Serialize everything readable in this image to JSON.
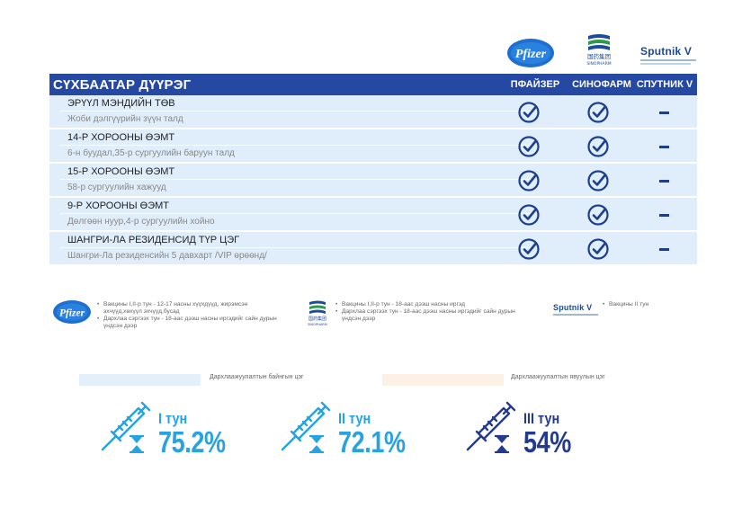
{
  "logos": {
    "pfizer": "Pfizer",
    "sinopharm_cn": "国药集团",
    "sinopharm_en": "SINOPHARM",
    "sputnik": "Sputnik V"
  },
  "table": {
    "title": "СҮХБААТАР ДҮҮРЭГ",
    "columns": [
      "ПФАЙЗЕР",
      "СИНОФАРМ",
      "СПУТНИК V"
    ],
    "rows": [
      {
        "name": "ЭРҮҮЛ МЭНДИЙН ТӨВ",
        "address": "Жоби дэлгүүрийн зүүн талд",
        "pfizer": true,
        "sinopharm": true,
        "sputnik": false
      },
      {
        "name": "14-Р ХОРООНЫ ӨЭМТ",
        "address": "6-н буудал,35-р сургуулийн баруун талд",
        "pfizer": true,
        "sinopharm": true,
        "sputnik": false
      },
      {
        "name": "15-Р ХОРООНЫ ӨЭМТ",
        "address": "58-р сургуулийн хажууд",
        "pfizer": true,
        "sinopharm": true,
        "sputnik": false
      },
      {
        "name": "9-Р ХОРООНЫ ӨЭМТ",
        "address": "Дөлгөөн нуур,4-р сургуулийн хойно",
        "pfizer": true,
        "sinopharm": true,
        "sputnik": false
      },
      {
        "name": "ШАНГРИ-ЛА РЕЗИДЕНСИД ТҮР ЦЭГ",
        "address": "Шангри-Ла резиденсийн 5 давхарт /VIP өрөөнд/",
        "pfizer": true,
        "sinopharm": true,
        "sputnik": false
      }
    ]
  },
  "legend": {
    "pfizer": [
      "Вакцины I,II-р тун - 12-17 насны хүүхдүүд, жирэмсэн эхчүүд,хөхүүл эхчүүд,бусад",
      "Дархлаа сэргээх тун - 18-аас дээш насны иргэдийг сайн дурын үндсэн дээр"
    ],
    "sinopharm": [
      "Вакцины I,II-р тун - 18-аас дээш насны иргэд",
      "Дархлаа сэргээх тун - 18-аас дээш насны иргэдийг сайн дурын үндсэн дээр"
    ],
    "sputnik": [
      "Вакцины II тун"
    ]
  },
  "bars": {
    "permanent_label": "Дархлаажуулалтын байнгын цэг",
    "mobile_label": "Дархлаажуулалтын явуулын цэг"
  },
  "stats": [
    {
      "dose": "I тун",
      "percent": "75.2%",
      "color": "#27a3e0"
    },
    {
      "dose": "II тун",
      "percent": "72.1%",
      "color": "#27a3e0"
    },
    {
      "dose": "III тун",
      "percent": "54%",
      "color": "#243b8d"
    }
  ]
}
